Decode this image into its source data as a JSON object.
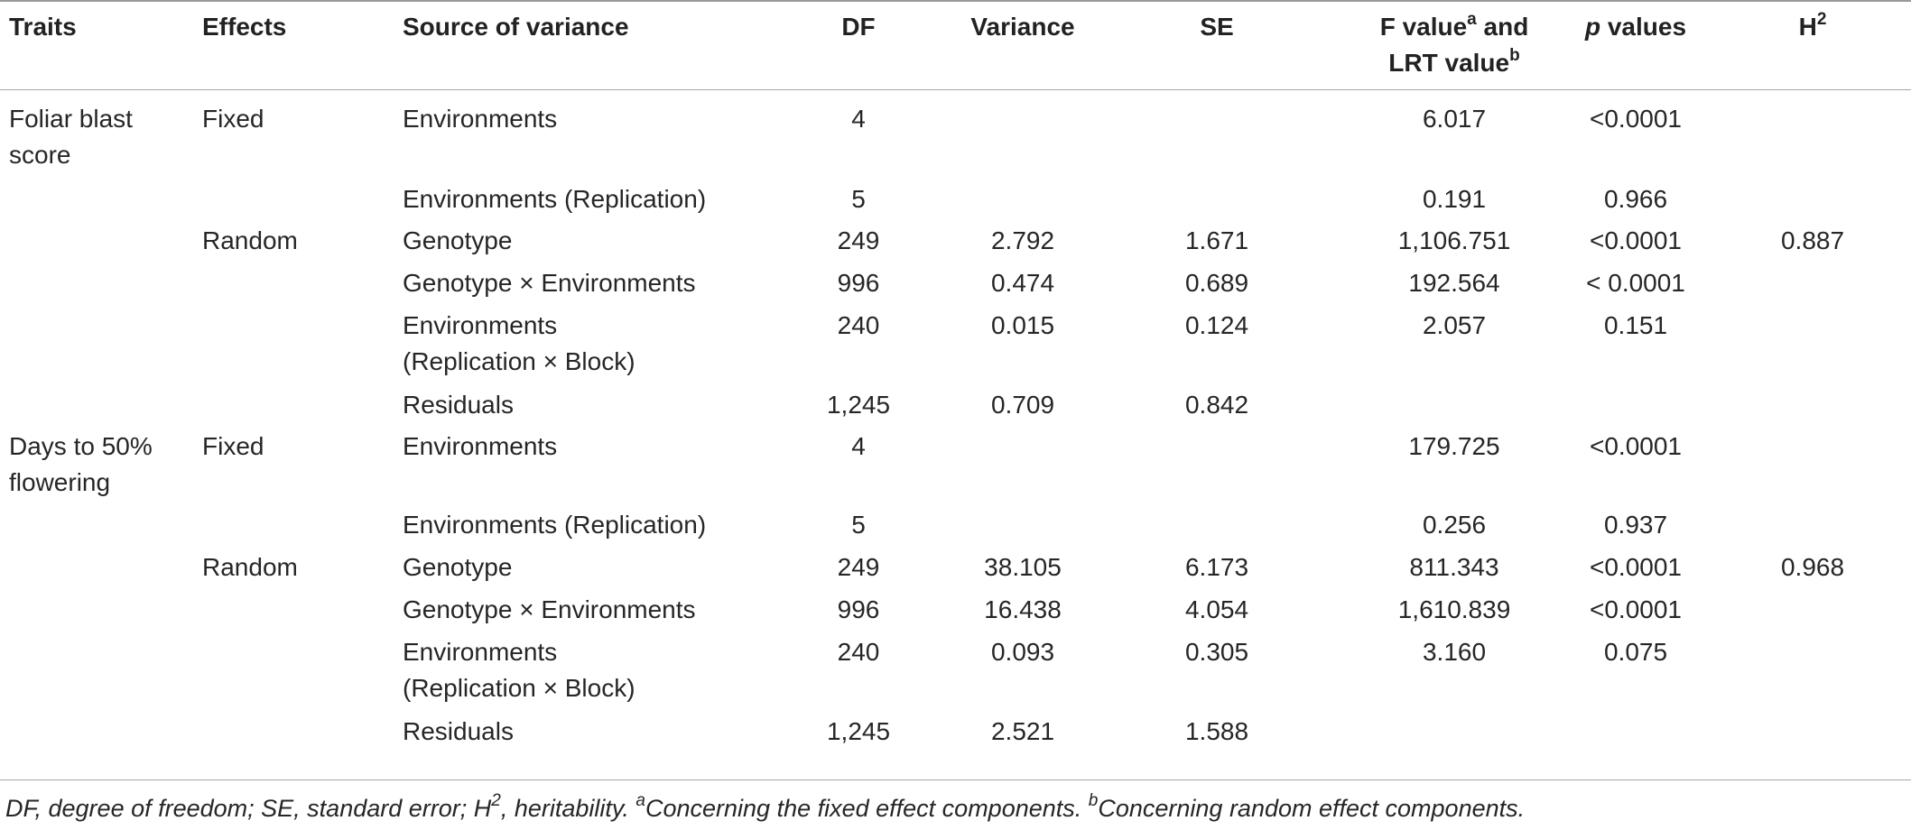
{
  "header": {
    "traits": "Traits",
    "effects": "Effects",
    "source": "Source of variance",
    "df": "DF",
    "variance": "Variance",
    "se": "SE",
    "f_line1_pre": "F value",
    "f_line1_sup": "a",
    "f_line1_post": " and",
    "f_line2_pre": "LRT value",
    "f_line2_sup": "b",
    "p_italic": "p",
    "p_rest": " values",
    "h2_base": "H",
    "h2_sup": "2"
  },
  "rows": [
    {
      "trait_line1": "Foliar blast",
      "trait_line2": "score",
      "effect": "Fixed",
      "source_line1": "Environments",
      "source_line2": "",
      "df": "4",
      "variance": "",
      "se": "",
      "f": "6.017",
      "p": "<0.0001",
      "h2": ""
    },
    {
      "trait_line1": "",
      "trait_line2": "",
      "effect": "",
      "source_line1": "Environments (Replication)",
      "source_line2": "",
      "df": "5",
      "variance": "",
      "se": "",
      "f": "0.191",
      "p": "0.966",
      "h2": ""
    },
    {
      "trait_line1": "",
      "trait_line2": "",
      "effect": "Random",
      "source_line1": "Genotype",
      "source_line2": "",
      "df": "249",
      "variance": "2.792",
      "se": "1.671",
      "f": "1,106.751",
      "p": "<0.0001",
      "h2": "0.887"
    },
    {
      "trait_line1": "",
      "trait_line2": "",
      "effect": "",
      "source_line1": "Genotype × Environments",
      "source_line2": "",
      "df": "996",
      "variance": "0.474",
      "se": "0.689",
      "f": "192.564",
      "p": "< 0.0001",
      "h2": ""
    },
    {
      "trait_line1": "",
      "trait_line2": "",
      "effect": "",
      "source_line1": "Environments",
      "source_line2": "(Replication × Block)",
      "df": "240",
      "variance": "0.015",
      "se": "0.124",
      "f": "2.057",
      "p": "0.151",
      "h2": ""
    },
    {
      "trait_line1": "",
      "trait_line2": "",
      "effect": "",
      "source_line1": "Residuals",
      "source_line2": "",
      "df": "1,245",
      "variance": "0.709",
      "se": "0.842",
      "f": "",
      "p": "",
      "h2": ""
    },
    {
      "trait_line1": "Days to 50%",
      "trait_line2": "flowering",
      "effect": "Fixed",
      "source_line1": "Environments",
      "source_line2": "",
      "df": "4",
      "variance": "",
      "se": "",
      "f": "179.725",
      "p": "<0.0001",
      "h2": ""
    },
    {
      "trait_line1": "",
      "trait_line2": "",
      "effect": "",
      "source_line1": "Environments (Replication)",
      "source_line2": "",
      "df": "5",
      "variance": "",
      "se": "",
      "f": "0.256",
      "p": "0.937",
      "h2": ""
    },
    {
      "trait_line1": "",
      "trait_line2": "",
      "effect": "Random",
      "source_line1": "Genotype",
      "source_line2": "",
      "df": "249",
      "variance": "38.105",
      "se": "6.173",
      "f": "811.343",
      "p": "<0.0001",
      "h2": "0.968"
    },
    {
      "trait_line1": "",
      "trait_line2": "",
      "effect": "",
      "source_line1": "Genotype × Environments",
      "source_line2": "",
      "df": "996",
      "variance": "16.438",
      "se": "4.054",
      "f": "1,610.839",
      "p": "<0.0001",
      "h2": ""
    },
    {
      "trait_line1": "",
      "trait_line2": "",
      "effect": "",
      "source_line1": "Environments",
      "source_line2": "(Replication × Block)",
      "df": "240",
      "variance": "0.093",
      "se": "0.305",
      "f": "3.160",
      "p": "0.075",
      "h2": ""
    },
    {
      "trait_line1": "",
      "trait_line2": "",
      "effect": "",
      "source_line1": "Residuals",
      "source_line2": "",
      "df": "1,245",
      "variance": "2.521",
      "se": "1.588",
      "f": "",
      "p": "",
      "h2": ""
    }
  ],
  "footnote": {
    "part1": "DF, degree of freedom; SE, standard error; H",
    "part1_sup": "2",
    "part2": ", heritability. ",
    "sup_a": "a",
    "part3": "Concerning the fixed effect components. ",
    "sup_b": "b",
    "part4": "Concerning random effect components."
  }
}
